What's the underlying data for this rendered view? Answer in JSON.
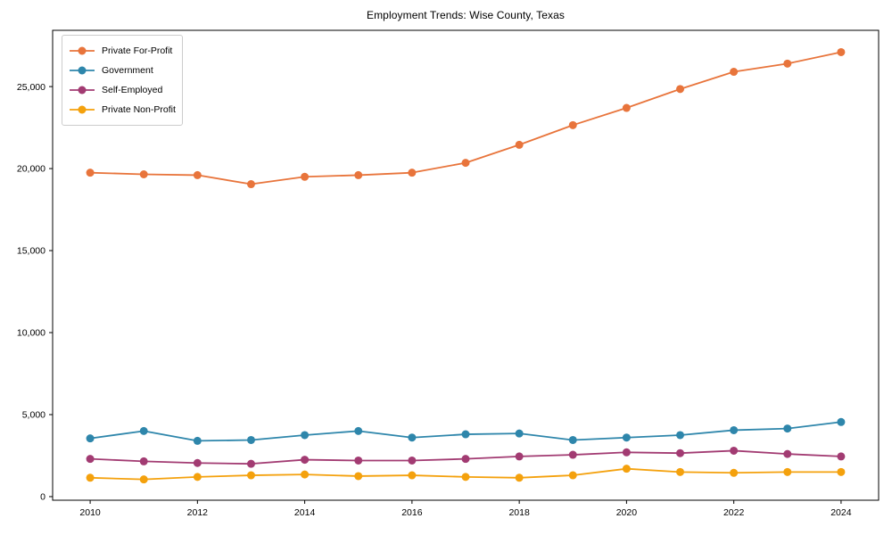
{
  "chart_data": {
    "type": "line",
    "title": "Employment Trends: Wise County, Texas",
    "xlabel": "",
    "ylabel": "",
    "x": [
      2010,
      2011,
      2012,
      2013,
      2014,
      2015,
      2016,
      2017,
      2018,
      2019,
      2020,
      2021,
      2022,
      2023,
      2024
    ],
    "series": [
      {
        "name": "Private For-Profit",
        "color": "#E8743B",
        "values": [
          19750,
          19650,
          19600,
          19050,
          19500,
          19600,
          19750,
          20350,
          21450,
          22650,
          23700,
          24850,
          25900,
          26400,
          27100
        ]
      },
      {
        "name": "Government",
        "color": "#2E86AB",
        "values": [
          3550,
          4000,
          3400,
          3450,
          3750,
          4000,
          3600,
          3800,
          3850,
          3450,
          3600,
          3750,
          4050,
          4150,
          4550
        ]
      },
      {
        "name": "Self-Employed",
        "color": "#A23B72",
        "values": [
          2300,
          2150,
          2050,
          2000,
          2250,
          2200,
          2200,
          2300,
          2450,
          2550,
          2700,
          2650,
          2800,
          2600,
          2450
        ]
      },
      {
        "name": "Private Non-Profit",
        "color": "#F4A10D",
        "values": [
          1150,
          1050,
          1200,
          1300,
          1350,
          1250,
          1300,
          1200,
          1150,
          1300,
          1700,
          1500,
          1450,
          1500,
          1500
        ]
      }
    ],
    "x_tick_labels": [
      "2010",
      "2012",
      "2014",
      "2016",
      "2018",
      "2020",
      "2022",
      "2024"
    ],
    "x_tick_values": [
      2010,
      2012,
      2014,
      2016,
      2018,
      2020,
      2022,
      2024
    ],
    "y_tick_labels": [
      "0",
      "5,000",
      "10,000",
      "15,000",
      "20,000",
      "25,000"
    ],
    "y_tick_values": [
      0,
      5000,
      10000,
      15000,
      20000,
      25000
    ],
    "xlim": [
      2009.3,
      2024.7
    ],
    "ylim": [
      -220,
      28430
    ],
    "grid": false,
    "legend_position": "upper-left",
    "axis_color": "#000000",
    "background_color": "#ffffff"
  }
}
